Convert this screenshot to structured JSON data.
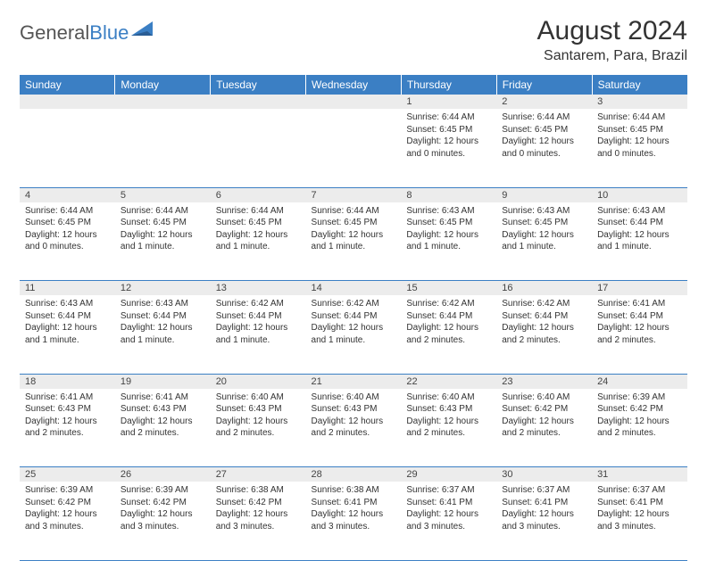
{
  "logo": {
    "text1": "General",
    "text2": "Blue"
  },
  "title": "August 2024",
  "location": "Santarem, Para, Brazil",
  "colors": {
    "header_bg": "#3b7fc4",
    "header_text": "#ffffff",
    "daynum_bg": "#ececec",
    "border": "#3b7fc4",
    "body_text": "#333333"
  },
  "weekdays": [
    "Sunday",
    "Monday",
    "Tuesday",
    "Wednesday",
    "Thursday",
    "Friday",
    "Saturday"
  ],
  "weeks": [
    [
      null,
      null,
      null,
      null,
      {
        "day": "1",
        "sunrise": "6:44 AM",
        "sunset": "6:45 PM",
        "daylight": "12 hours and 0 minutes."
      },
      {
        "day": "2",
        "sunrise": "6:44 AM",
        "sunset": "6:45 PM",
        "daylight": "12 hours and 0 minutes."
      },
      {
        "day": "3",
        "sunrise": "6:44 AM",
        "sunset": "6:45 PM",
        "daylight": "12 hours and 0 minutes."
      }
    ],
    [
      {
        "day": "4",
        "sunrise": "6:44 AM",
        "sunset": "6:45 PM",
        "daylight": "12 hours and 0 minutes."
      },
      {
        "day": "5",
        "sunrise": "6:44 AM",
        "sunset": "6:45 PM",
        "daylight": "12 hours and 1 minute."
      },
      {
        "day": "6",
        "sunrise": "6:44 AM",
        "sunset": "6:45 PM",
        "daylight": "12 hours and 1 minute."
      },
      {
        "day": "7",
        "sunrise": "6:44 AM",
        "sunset": "6:45 PM",
        "daylight": "12 hours and 1 minute."
      },
      {
        "day": "8",
        "sunrise": "6:43 AM",
        "sunset": "6:45 PM",
        "daylight": "12 hours and 1 minute."
      },
      {
        "day": "9",
        "sunrise": "6:43 AM",
        "sunset": "6:45 PM",
        "daylight": "12 hours and 1 minute."
      },
      {
        "day": "10",
        "sunrise": "6:43 AM",
        "sunset": "6:44 PM",
        "daylight": "12 hours and 1 minute."
      }
    ],
    [
      {
        "day": "11",
        "sunrise": "6:43 AM",
        "sunset": "6:44 PM",
        "daylight": "12 hours and 1 minute."
      },
      {
        "day": "12",
        "sunrise": "6:43 AM",
        "sunset": "6:44 PM",
        "daylight": "12 hours and 1 minute."
      },
      {
        "day": "13",
        "sunrise": "6:42 AM",
        "sunset": "6:44 PM",
        "daylight": "12 hours and 1 minute."
      },
      {
        "day": "14",
        "sunrise": "6:42 AM",
        "sunset": "6:44 PM",
        "daylight": "12 hours and 1 minute."
      },
      {
        "day": "15",
        "sunrise": "6:42 AM",
        "sunset": "6:44 PM",
        "daylight": "12 hours and 2 minutes."
      },
      {
        "day": "16",
        "sunrise": "6:42 AM",
        "sunset": "6:44 PM",
        "daylight": "12 hours and 2 minutes."
      },
      {
        "day": "17",
        "sunrise": "6:41 AM",
        "sunset": "6:44 PM",
        "daylight": "12 hours and 2 minutes."
      }
    ],
    [
      {
        "day": "18",
        "sunrise": "6:41 AM",
        "sunset": "6:43 PM",
        "daylight": "12 hours and 2 minutes."
      },
      {
        "day": "19",
        "sunrise": "6:41 AM",
        "sunset": "6:43 PM",
        "daylight": "12 hours and 2 minutes."
      },
      {
        "day": "20",
        "sunrise": "6:40 AM",
        "sunset": "6:43 PM",
        "daylight": "12 hours and 2 minutes."
      },
      {
        "day": "21",
        "sunrise": "6:40 AM",
        "sunset": "6:43 PM",
        "daylight": "12 hours and 2 minutes."
      },
      {
        "day": "22",
        "sunrise": "6:40 AM",
        "sunset": "6:43 PM",
        "daylight": "12 hours and 2 minutes."
      },
      {
        "day": "23",
        "sunrise": "6:40 AM",
        "sunset": "6:42 PM",
        "daylight": "12 hours and 2 minutes."
      },
      {
        "day": "24",
        "sunrise": "6:39 AM",
        "sunset": "6:42 PM",
        "daylight": "12 hours and 2 minutes."
      }
    ],
    [
      {
        "day": "25",
        "sunrise": "6:39 AM",
        "sunset": "6:42 PM",
        "daylight": "12 hours and 3 minutes."
      },
      {
        "day": "26",
        "sunrise": "6:39 AM",
        "sunset": "6:42 PM",
        "daylight": "12 hours and 3 minutes."
      },
      {
        "day": "27",
        "sunrise": "6:38 AM",
        "sunset": "6:42 PM",
        "daylight": "12 hours and 3 minutes."
      },
      {
        "day": "28",
        "sunrise": "6:38 AM",
        "sunset": "6:41 PM",
        "daylight": "12 hours and 3 minutes."
      },
      {
        "day": "29",
        "sunrise": "6:37 AM",
        "sunset": "6:41 PM",
        "daylight": "12 hours and 3 minutes."
      },
      {
        "day": "30",
        "sunrise": "6:37 AM",
        "sunset": "6:41 PM",
        "daylight": "12 hours and 3 minutes."
      },
      {
        "day": "31",
        "sunrise": "6:37 AM",
        "sunset": "6:41 PM",
        "daylight": "12 hours and 3 minutes."
      }
    ]
  ],
  "labels": {
    "sunrise": "Sunrise:",
    "sunset": "Sunset:",
    "daylight": "Daylight:"
  }
}
